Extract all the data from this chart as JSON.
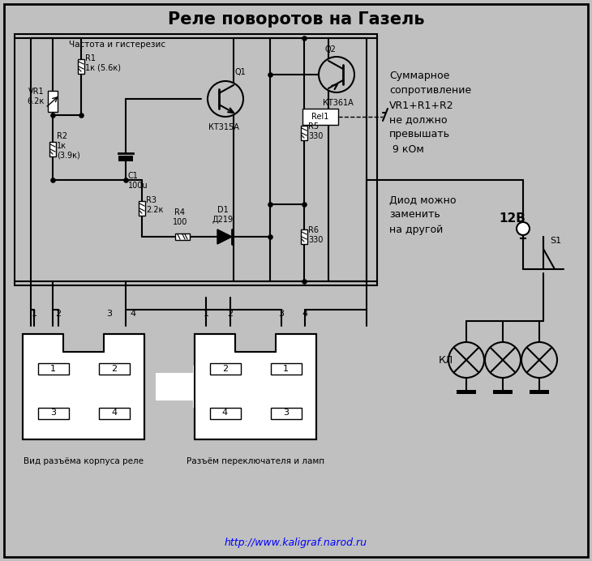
{
  "title": "Реле поворотов на Газель",
  "bg": "#c0c0c0",
  "lw": 1.5,
  "annotation1": [
    "Суммарное",
    "сопротивление",
    "VR1+R1+R2",
    "не должно",
    "превышать",
    " 9 кОм"
  ],
  "annotation2": [
    "Диод можно",
    "заменить",
    "на другой"
  ],
  "freq_label": "Частота и гистерезис",
  "label_R1": "R1\n1к (5.6к)",
  "label_R2": "R2\n1к\n(3.9к)",
  "label_R3": "R3\n2.2к",
  "label_R4": "R4\n100",
  "label_R5": "R5\n330",
  "label_R6": "R6\n330",
  "label_C1": "C1\n100u",
  "label_D1": "D1\nД219",
  "label_VR1": "VR1\n6.2к",
  "label_Q1": "КТ315А",
  "label_Q1_ref": "Q1",
  "label_Q2": "КТ361А",
  "label_Q2_ref": "Q2",
  "label_Rel1": "Rel1",
  "label_12V": "12В",
  "label_S1": "S1",
  "label_KL": "КЛ",
  "footer_url": "http://www.kaligraf.narod.ru",
  "label_bot_left": "Вид разъёма корпуса реле",
  "label_bot_right": "Разъём переключателя и ламп"
}
